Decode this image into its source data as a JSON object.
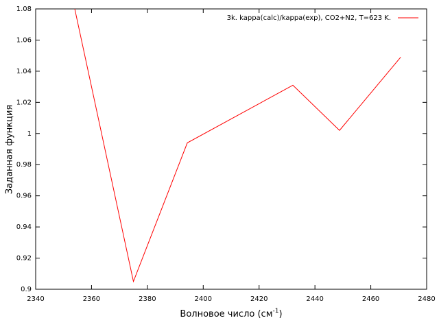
{
  "chart_data": {
    "type": "line",
    "xlabel": [
      "Волновое число (см",
      "-1",
      ")"
    ],
    "ylabel": "Заданная функция",
    "x": [
      2354,
      2375,
      2394.3,
      2432.1,
      2448.8,
      2470.7
    ],
    "series": [
      {
        "name": "3k. kappa(calc)/kappa(exp),  CO2+N2, T=623 K.",
        "color": "#ff0000",
        "values": [
          1.08,
          0.905,
          0.994,
          1.031,
          1.002,
          1.049
        ]
      }
    ],
    "xlim": [
      2340,
      2480
    ],
    "xticks": [
      2340,
      2360,
      2380,
      2400,
      2420,
      2440,
      2460,
      2480
    ],
    "ylim": [
      0.9,
      1.08
    ],
    "yticks": [
      0.9,
      0.92,
      0.94,
      0.96,
      0.98,
      1,
      1.02,
      1.04,
      1.06,
      1.08
    ],
    "grid": false,
    "legend": "top-right"
  }
}
